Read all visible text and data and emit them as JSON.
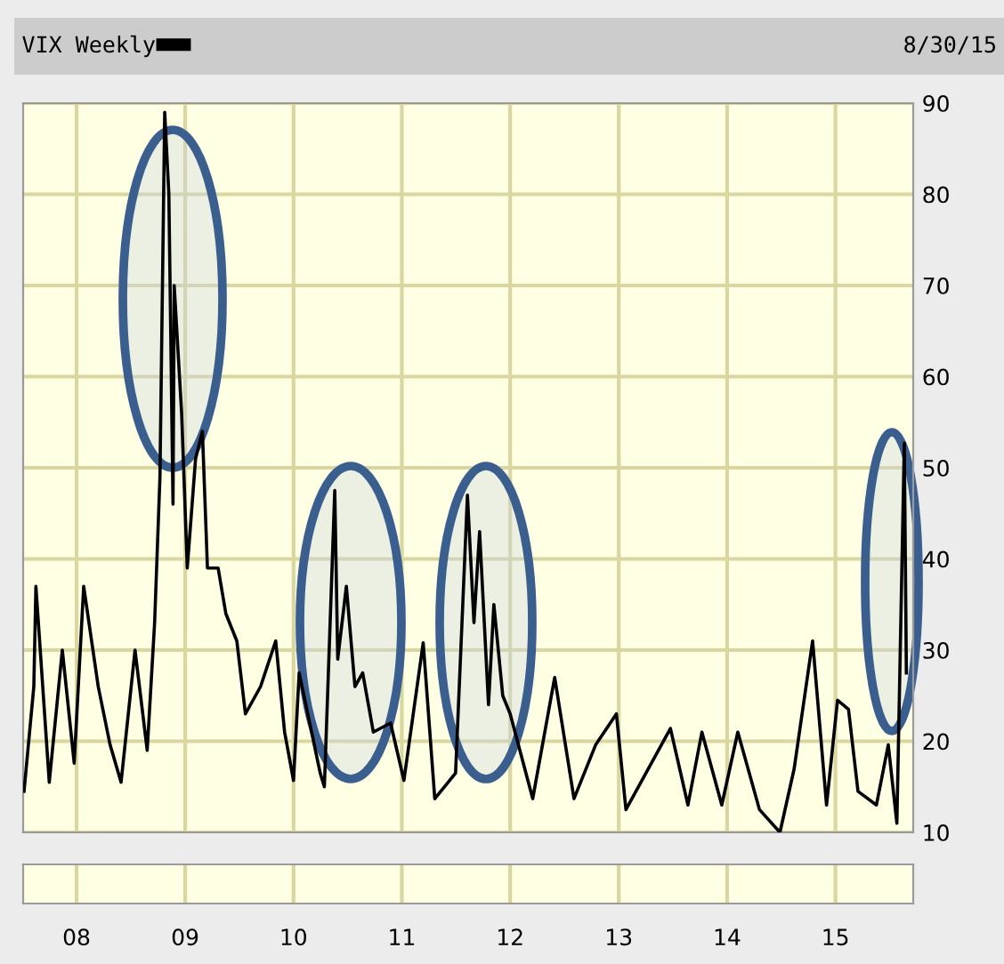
{
  "chart_data": {
    "type": "line",
    "subtitle": "8/30/15",
    "x": [
      "2007-07-08",
      "2007-08-10",
      "2007-08-17",
      "2007-10-01",
      "2007-11-14",
      "2007-12-24",
      "2008-01-25",
      "2008-03-14",
      "2008-04-23",
      "2008-05-30",
      "2008-07-16",
      "2008-08-26",
      "2008-09-20",
      "2008-10-08",
      "2008-10-24",
      "2008-11-07",
      "2008-11-21",
      "2008-11-25",
      "2008-12-20",
      "2009-01-08",
      "2009-02-05",
      "2009-02-28",
      "2009-03-17",
      "2009-04-22",
      "2009-05-18",
      "2009-06-24",
      "2009-07-23",
      "2009-09-12",
      "2009-11-02",
      "2009-12-02",
      "2010-01-01",
      "2010-01-20",
      "2010-04-01",
      "2010-04-15",
      "2010-05-20",
      "2010-05-30",
      "2010-06-28",
      "2010-07-27",
      "2010-08-22",
      "2010-09-27",
      "2010-11-24",
      "2011-01-08",
      "2011-03-14",
      "2011-04-22",
      "2011-07-01",
      "2011-08-10",
      "2011-09-01",
      "2011-09-20",
      "2011-10-20",
      "2011-11-07",
      "2011-12-07",
      "2012-01-01",
      "2012-03-17",
      "2012-05-30",
      "2012-08-03",
      "2012-10-15",
      "2012-12-24",
      "2013-01-25",
      "2013-06-24",
      "2013-08-22",
      "2013-10-08",
      "2013-12-14",
      "2014-02-06",
      "2014-04-20",
      "2014-06-28",
      "2014-08-15",
      "2014-10-16",
      "2014-12-02",
      "2015-01-08",
      "2015-02-14",
      "2015-03-18",
      "2015-05-19",
      "2015-06-28",
      "2015-07-27",
      "2015-08-21",
      "2015-08-28"
    ],
    "series": [
      {
        "name": "VIX Weekly",
        "color": "#000000",
        "values": [
          14.5,
          26,
          37,
          15.5,
          30,
          17.6,
          37,
          26,
          19.6,
          15.5,
          30,
          19,
          33,
          49,
          89,
          80,
          46,
          70,
          56,
          39,
          51,
          54,
          39,
          39,
          34,
          31,
          23,
          26,
          31,
          21,
          15.7,
          27.5,
          16.5,
          15,
          47.5,
          29,
          37,
          26,
          27.5,
          21,
          22,
          15.7,
          30.8,
          13.7,
          16.5,
          47,
          33,
          43,
          24,
          35,
          25,
          23,
          13.7,
          27,
          13.7,
          19.6,
          23,
          12.5,
          21.4,
          13,
          21,
          13,
          21,
          12.5,
          10,
          17,
          31,
          13,
          24.5,
          23.5,
          14.5,
          13,
          19.6,
          11,
          52.7,
          27.5
        ]
      }
    ],
    "xlim": [
      "2007-07-05",
      "2015-09-20"
    ],
    "xticks": [
      {
        "value": "2008-01-01",
        "label": "08"
      },
      {
        "value": "2009-01-01",
        "label": "09"
      },
      {
        "value": "2010-01-01",
        "label": "10"
      },
      {
        "value": "2011-01-01",
        "label": "11"
      },
      {
        "value": "2012-01-01",
        "label": "12"
      },
      {
        "value": "2013-01-01",
        "label": "13"
      },
      {
        "value": "2014-01-01",
        "label": "14"
      },
      {
        "value": "2015-01-01",
        "label": "15"
      }
    ],
    "ylim": [
      10,
      90
    ],
    "yticks": [
      10,
      20,
      30,
      40,
      50,
      60,
      70,
      80,
      90
    ],
    "grid": true,
    "legend": "top left",
    "marker": "none",
    "line_style": "solid"
  }
}
